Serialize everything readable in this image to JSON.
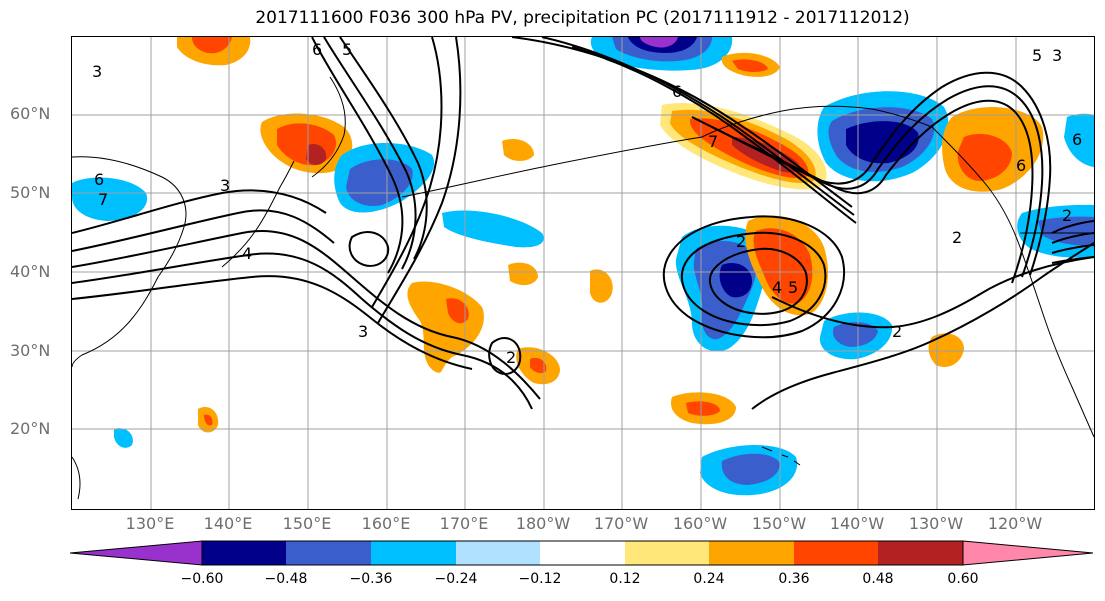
{
  "title": "2017111600 F036 300 hPa PV, precipitation PC (2017111912 - 2017112012)",
  "latitude_labels": [
    "60°N",
    "50°N",
    "40°N",
    "30°N",
    "20°N"
  ],
  "longitude_labels": [
    "130°E",
    "140°E",
    "150°E",
    "160°E",
    "170°E",
    "180°W",
    "170°W",
    "160°W",
    "150°W",
    "140°W",
    "130°W",
    "120°W"
  ],
  "colorbar": {
    "ticks": [
      "−0.60",
      "−0.48",
      "−0.36",
      "−0.24",
      "−0.12",
      "0.12",
      "0.24",
      "0.36",
      "0.48",
      "0.60"
    ],
    "colors": [
      "#9932cc",
      "#00008b",
      "#3a5fcd",
      "#00bfff",
      "#b0e2ff",
      "#ffffff",
      "#ffe77a",
      "#ffa500",
      "#ff4500",
      "#b22222",
      "#ff88aa"
    ]
  },
  "pv_contour_labels": [
    "3",
    "3",
    "6",
    "7",
    "2",
    "6",
    "5",
    "6",
    "7",
    "2",
    "4",
    "5",
    "3",
    "2",
    "2",
    "6",
    "3",
    "5",
    "6",
    "4",
    "2"
  ]
}
